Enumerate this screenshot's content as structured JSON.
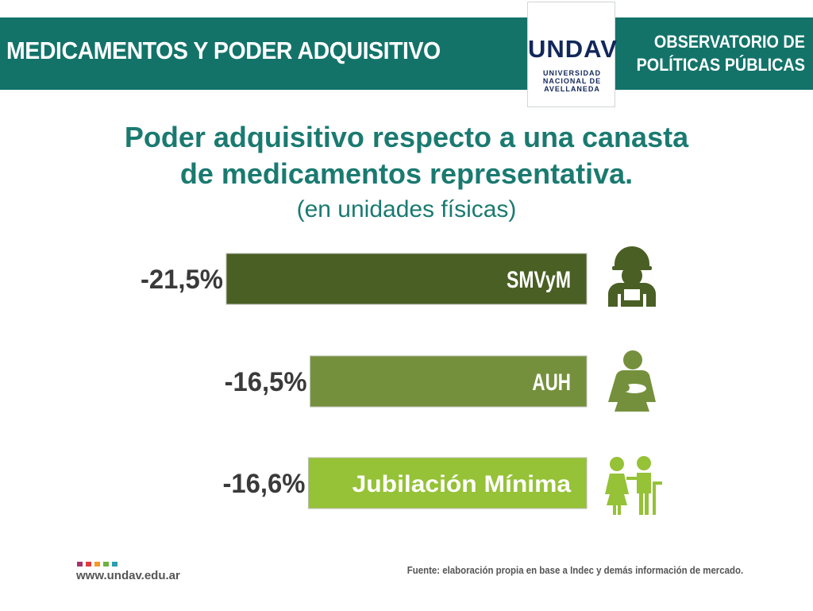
{
  "header": {
    "title": "MEDICAMENTOS Y PODER ADQUISITIVO",
    "org_line1": "OBSERVATORIO DE",
    "org_line2": "POLÍTICAS PÚBLICAS",
    "bar_color": "#137369"
  },
  "logo": {
    "word": "UNDAV",
    "line1": "UNIVERSIDAD",
    "line2": "NACIONAL DE",
    "line3": "AVELLANEDA"
  },
  "chart_data": {
    "type": "bar",
    "orientation": "horizontal",
    "title_line1": "Poder adquisitivo respecto a una canasta",
    "title_line2": "de medicamentos representativa.",
    "subtitle": "(en unidades físicas)",
    "categories": [
      "SMVyM",
      "AUH",
      "Jubilación Mínima"
    ],
    "values": [
      -21.5,
      -16.5,
      -16.6
    ],
    "value_labels": [
      "-21,5%",
      "-16,5%",
      "-16,6%"
    ],
    "bar_colors": [
      "#4a5f24",
      "#75903c",
      "#95c236"
    ],
    "icons": [
      "worker-icon",
      "mother-baby-icon",
      "elderly-couple-icon"
    ],
    "title_color": "#1a7a70",
    "subtitle_color": "#1a7a70"
  },
  "footer": {
    "url": "www.undav.edu.ar",
    "source": "Fuente: elaboración propia en base a Indec y demás información de mercado.",
    "square_colors": [
      "#a8336a",
      "#e03a3e",
      "#f39a24",
      "#6cb33f",
      "#2b9fb0"
    ]
  }
}
